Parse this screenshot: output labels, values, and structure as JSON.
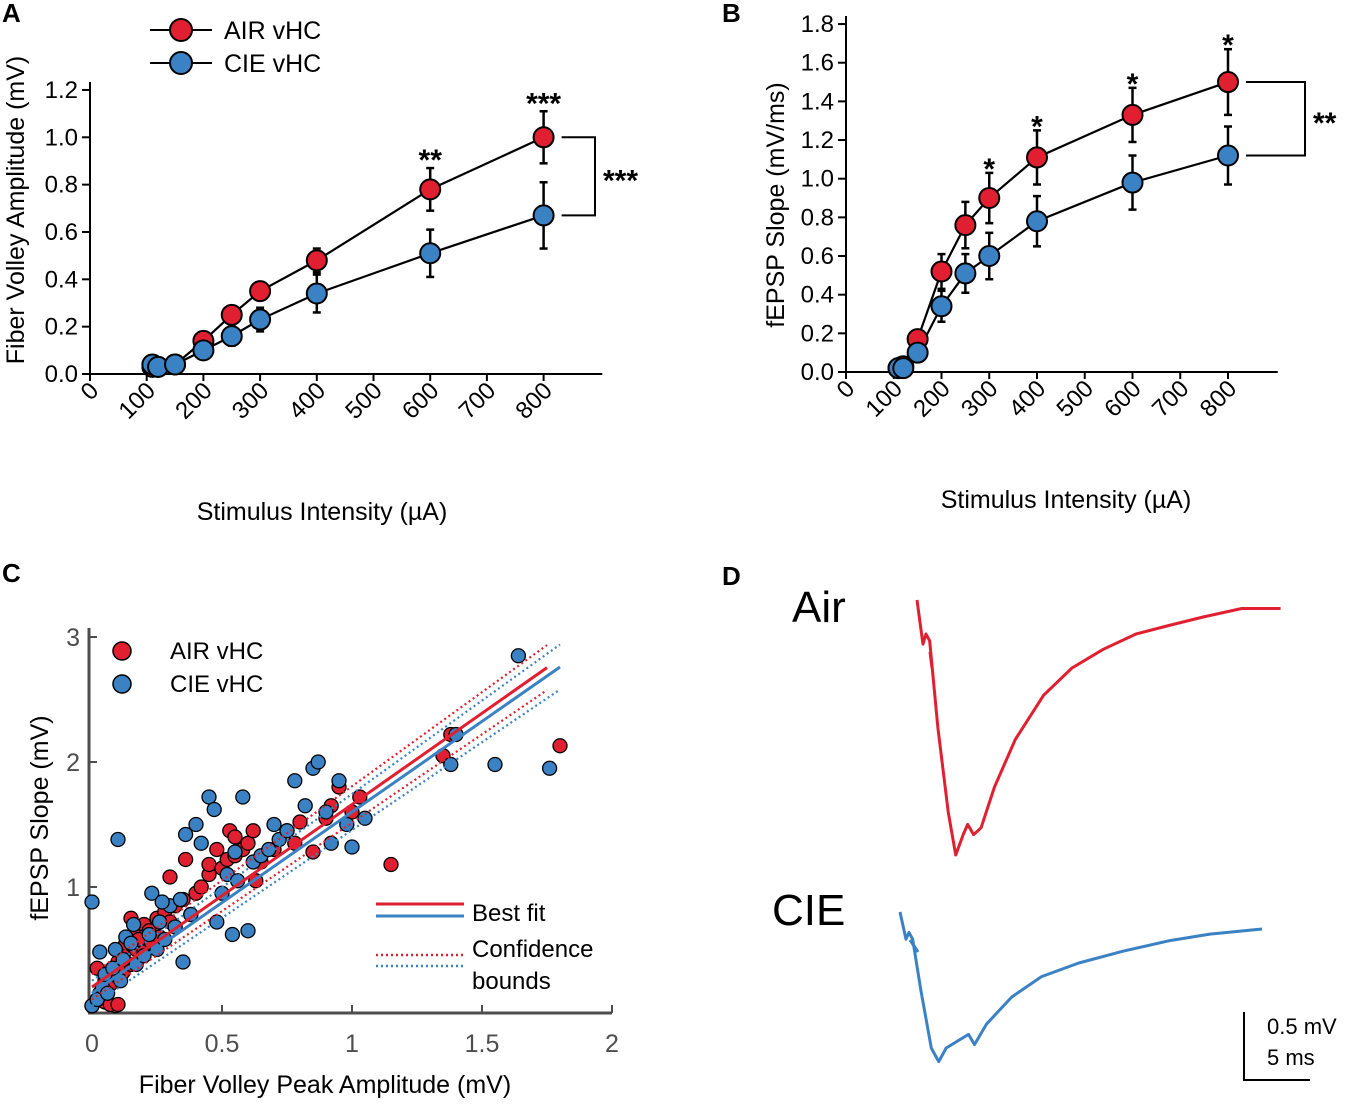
{
  "colors": {
    "air": "#e02030",
    "cie": "#3a82c4",
    "axis": "#000000",
    "axis_c": "#4d4d4d"
  },
  "chart_data": [
    {
      "panel": "A",
      "type": "line",
      "xlabel": "Stimulus Intensity (µA)",
      "ylabel": "Fiber Volley Amplitude (mV)",
      "xticks": [
        "0",
        "100",
        "200",
        "300",
        "400",
        "500",
        "600",
        "700",
        "800"
      ],
      "yticks": [
        "0.0",
        "0.2",
        "0.4",
        "0.6",
        "0.8",
        "1.0",
        "1.2"
      ],
      "xlim": [
        0,
        900
      ],
      "ylim": [
        0,
        1.2
      ],
      "legend": [
        "AIR vHC",
        "CIE vHC"
      ],
      "series": [
        {
          "name": "AIR vHC",
          "x": [
            110,
            120,
            150,
            200,
            250,
            300,
            400,
            600,
            800
          ],
          "values": [
            0.03,
            0.03,
            0.04,
            0.14,
            0.25,
            0.35,
            0.48,
            0.78,
            1.0
          ],
          "err": [
            0.01,
            0.01,
            0.01,
            0.02,
            0.03,
            0.03,
            0.05,
            0.09,
            0.11
          ]
        },
        {
          "name": "CIE vHC",
          "x": [
            110,
            120,
            150,
            200,
            250,
            300,
            400,
            600,
            800
          ],
          "values": [
            0.04,
            0.03,
            0.04,
            0.1,
            0.16,
            0.23,
            0.34,
            0.51,
            0.67
          ],
          "err": [
            0.01,
            0.01,
            0.01,
            0.02,
            0.04,
            0.05,
            0.08,
            0.1,
            0.14
          ]
        }
      ],
      "sig_points": [
        {
          "x": 600,
          "label": "**"
        },
        {
          "x": 800,
          "label": "***"
        }
      ],
      "bracket_label": "***"
    },
    {
      "panel": "B",
      "type": "line",
      "xlabel": "Stimulus Intensity (µA)",
      "ylabel": "fEPSP Slope (mV/ms)",
      "xticks": [
        "0",
        "100",
        "200",
        "300",
        "400",
        "500",
        "600",
        "700",
        "800"
      ],
      "yticks": [
        "0.0",
        "0.2",
        "0.4",
        "0.6",
        "0.8",
        "1.0",
        "1.2",
        "1.4",
        "1.6",
        "1.8"
      ],
      "xlim": [
        0,
        900
      ],
      "ylim": [
        0,
        1.8
      ],
      "series": [
        {
          "name": "AIR vHC",
          "x": [
            110,
            120,
            150,
            200,
            250,
            300,
            400,
            600,
            800
          ],
          "values": [
            0.02,
            0.03,
            0.17,
            0.52,
            0.76,
            0.9,
            1.11,
            1.33,
            1.5
          ],
          "err": [
            0.01,
            0.01,
            0.03,
            0.09,
            0.12,
            0.13,
            0.14,
            0.14,
            0.17
          ]
        },
        {
          "name": "CIE vHC",
          "x": [
            110,
            120,
            150,
            200,
            250,
            300,
            400,
            600,
            800
          ],
          "values": [
            0.02,
            0.02,
            0.1,
            0.34,
            0.51,
            0.6,
            0.78,
            0.98,
            1.12
          ],
          "err": [
            0.01,
            0.01,
            0.03,
            0.08,
            0.1,
            0.12,
            0.13,
            0.14,
            0.15
          ]
        }
      ],
      "sig_points": [
        {
          "x": 300,
          "label": "*"
        },
        {
          "x": 400,
          "label": "*"
        },
        {
          "x": 600,
          "label": "*"
        },
        {
          "x": 800,
          "label": "*"
        }
      ],
      "bracket_label": "**"
    },
    {
      "panel": "C",
      "type": "scatter",
      "xlabel": "Fiber Volley Peak Amplitude (mV)",
      "ylabel": "fEPSP Slope (mV)",
      "xticks": [
        "0",
        "0.5",
        "1",
        "1.5",
        "2"
      ],
      "yticks": [
        "1",
        "2",
        "3"
      ],
      "xlim": [
        0,
        2
      ],
      "ylim": [
        0,
        3
      ],
      "legend": [
        "AIR vHC",
        "CIE vHC"
      ],
      "legend2": {
        "best_fit": "Best fit",
        "confidence_1": "Confidence",
        "confidence_2": "bounds"
      },
      "fits": [
        {
          "name": "AIR vHC",
          "slope": 1.46,
          "intercept": 0.2,
          "x_end": 1.75,
          "band": 0.1
        },
        {
          "name": "CIE vHC",
          "slope": 1.45,
          "intercept": 0.15,
          "x_end": 1.8,
          "band": 0.1
        }
      ],
      "series": [
        {
          "name": "AIR vHC",
          "points": [
            [
              0,
              0.05
            ],
            [
              0.02,
              0.1
            ],
            [
              0.03,
              0.15
            ],
            [
              0.04,
              0.2
            ],
            [
              0.05,
              0.25
            ],
            [
              0.05,
              0.08
            ],
            [
              0.06,
              0.3
            ],
            [
              0.07,
              0.22
            ],
            [
              0.08,
              0.35
            ],
            [
              0.09,
              0.05
            ],
            [
              0.1,
              0.4
            ],
            [
              0.1,
              0.28
            ],
            [
              0.12,
              0.45
            ],
            [
              0.12,
              0.32
            ],
            [
              0.13,
              0.55
            ],
            [
              0.14,
              0.6
            ],
            [
              0.15,
              0.38
            ],
            [
              0.16,
              0.62
            ],
            [
              0.17,
              0.5
            ],
            [
              0.18,
              0.58
            ],
            [
              0.2,
              0.48
            ],
            [
              0.2,
              0.7
            ],
            [
              0.22,
              0.65
            ],
            [
              0.23,
              0.55
            ],
            [
              0.25,
              0.75
            ],
            [
              0.26,
              0.6
            ],
            [
              0.28,
              0.8
            ],
            [
              0.3,
              0.72
            ],
            [
              0.3,
              1.08
            ],
            [
              0.32,
              0.85
            ],
            [
              0.35,
              0.9
            ],
            [
              0.36,
              1.22
            ],
            [
              0.38,
              0.78
            ],
            [
              0.4,
              0.95
            ],
            [
              0.42,
              1.0
            ],
            [
              0.45,
              1.1
            ],
            [
              0.45,
              1.18
            ],
            [
              0.48,
              1.3
            ],
            [
              0.5,
              1.15
            ],
            [
              0.52,
              1.22
            ],
            [
              0.53,
              1.45
            ],
            [
              0.55,
              1.25
            ],
            [
              0.55,
              1.4
            ],
            [
              0.58,
              1.3
            ],
            [
              0.6,
              1.35
            ],
            [
              0.62,
              1.45
            ],
            [
              0.63,
              1.05
            ],
            [
              0.65,
              1.2
            ],
            [
              0.7,
              1.3
            ],
            [
              0.75,
              1.45
            ],
            [
              0.78,
              1.35
            ],
            [
              0.8,
              1.52
            ],
            [
              0.85,
              1.28
            ],
            [
              0.9,
              1.55
            ],
            [
              0.92,
              1.65
            ],
            [
              0.95,
              1.8
            ],
            [
              1.0,
              1.6
            ],
            [
              1.03,
              1.72
            ],
            [
              1.15,
              1.18
            ],
            [
              1.35,
              2.05
            ],
            [
              1.38,
              2.22
            ],
            [
              1.8,
              2.13
            ],
            [
              0.07,
              0.06
            ],
            [
              0.1,
              0.06
            ],
            [
              0.02,
              0.35
            ],
            [
              0.15,
              0.75
            ]
          ]
        },
        {
          "name": "CIE vHC",
          "points": [
            [
              0,
              0.05
            ],
            [
              0,
              0.88
            ],
            [
              0.02,
              0.1
            ],
            [
              0.03,
              0.48
            ],
            [
              0.04,
              0.2
            ],
            [
              0.05,
              0.3
            ],
            [
              0.06,
              0.15
            ],
            [
              0.08,
              0.35
            ],
            [
              0.09,
              0.5
            ],
            [
              0.1,
              1.38
            ],
            [
              0.11,
              0.25
            ],
            [
              0.12,
              0.42
            ],
            [
              0.13,
              0.6
            ],
            [
              0.15,
              0.55
            ],
            [
              0.16,
              0.7
            ],
            [
              0.17,
              0.38
            ],
            [
              0.2,
              0.45
            ],
            [
              0.22,
              0.62
            ],
            [
              0.23,
              0.95
            ],
            [
              0.25,
              0.5
            ],
            [
              0.26,
              0.72
            ],
            [
              0.28,
              0.58
            ],
            [
              0.3,
              0.85
            ],
            [
              0.32,
              0.68
            ],
            [
              0.34,
              0.9
            ],
            [
              0.36,
              1.42
            ],
            [
              0.38,
              0.78
            ],
            [
              0.4,
              1.5
            ],
            [
              0.42,
              1.35
            ],
            [
              0.45,
              1.72
            ],
            [
              0.47,
              1.62
            ],
            [
              0.48,
              0.72
            ],
            [
              0.5,
              0.95
            ],
            [
              0.52,
              1.1
            ],
            [
              0.54,
              0.62
            ],
            [
              0.55,
              1.28
            ],
            [
              0.56,
              1.05
            ],
            [
              0.58,
              1.72
            ],
            [
              0.6,
              0.65
            ],
            [
              0.62,
              1.2
            ],
            [
              0.65,
              1.25
            ],
            [
              0.68,
              1.3
            ],
            [
              0.7,
              1.5
            ],
            [
              0.72,
              1.38
            ],
            [
              0.75,
              1.45
            ],
            [
              0.78,
              1.85
            ],
            [
              0.82,
              1.65
            ],
            [
              0.85,
              1.95
            ],
            [
              0.87,
              2.0
            ],
            [
              0.9,
              1.6
            ],
            [
              0.92,
              1.35
            ],
            [
              0.95,
              1.85
            ],
            [
              0.98,
              1.5
            ],
            [
              1.0,
              1.32
            ],
            [
              1.05,
              1.55
            ],
            [
              1.38,
              1.98
            ],
            [
              1.4,
              2.22
            ],
            [
              1.55,
              1.98
            ],
            [
              1.64,
              2.85
            ],
            [
              1.76,
              1.95
            ],
            [
              0.35,
              0.4
            ],
            [
              0.27,
              0.88
            ]
          ]
        }
      ]
    },
    {
      "panel": "D",
      "type": "line",
      "labels": {
        "air": "Air",
        "cie": "CIE"
      },
      "scale_bar": {
        "amplitude": "0.5 mV",
        "time": "5 ms"
      },
      "traces": {
        "air": [
          [
            0,
            0
          ],
          [
            0.4,
            -0.26
          ],
          [
            0.6,
            -0.2
          ],
          [
            0.85,
            -0.24
          ],
          [
            1.4,
            -0.75
          ],
          [
            2.1,
            -1.25
          ],
          [
            2.6,
            -1.5
          ],
          [
            3.1,
            -1.38
          ],
          [
            3.4,
            -1.32
          ],
          [
            3.8,
            -1.38
          ],
          [
            4.3,
            -1.34
          ],
          [
            5.2,
            -1.1
          ],
          [
            6.6,
            -0.82
          ],
          [
            8.5,
            -0.56
          ],
          [
            10.4,
            -0.4
          ],
          [
            12.5,
            -0.29
          ],
          [
            14.7,
            -0.2
          ],
          [
            16.9,
            -0.15
          ],
          [
            19.2,
            -0.1
          ],
          [
            21.8,
            -0.05
          ],
          [
            24.4,
            -0.05
          ]
        ],
        "cie": [
          [
            0,
            0
          ],
          [
            0.4,
            -0.16
          ],
          [
            0.6,
            -0.12
          ],
          [
            0.85,
            -0.16
          ],
          [
            1.4,
            -0.46
          ],
          [
            2.1,
            -0.8
          ],
          [
            2.6,
            -0.88
          ],
          [
            3.1,
            -0.8
          ],
          [
            4.6,
            -0.72
          ],
          [
            5.0,
            -0.78
          ],
          [
            5.8,
            -0.66
          ],
          [
            7.5,
            -0.5
          ],
          [
            9.5,
            -0.38
          ],
          [
            12.0,
            -0.3
          ],
          [
            15.0,
            -0.23
          ],
          [
            18.0,
            -0.17
          ],
          [
            20.8,
            -0.13
          ],
          [
            24.3,
            -0.1
          ]
        ]
      }
    }
  ]
}
